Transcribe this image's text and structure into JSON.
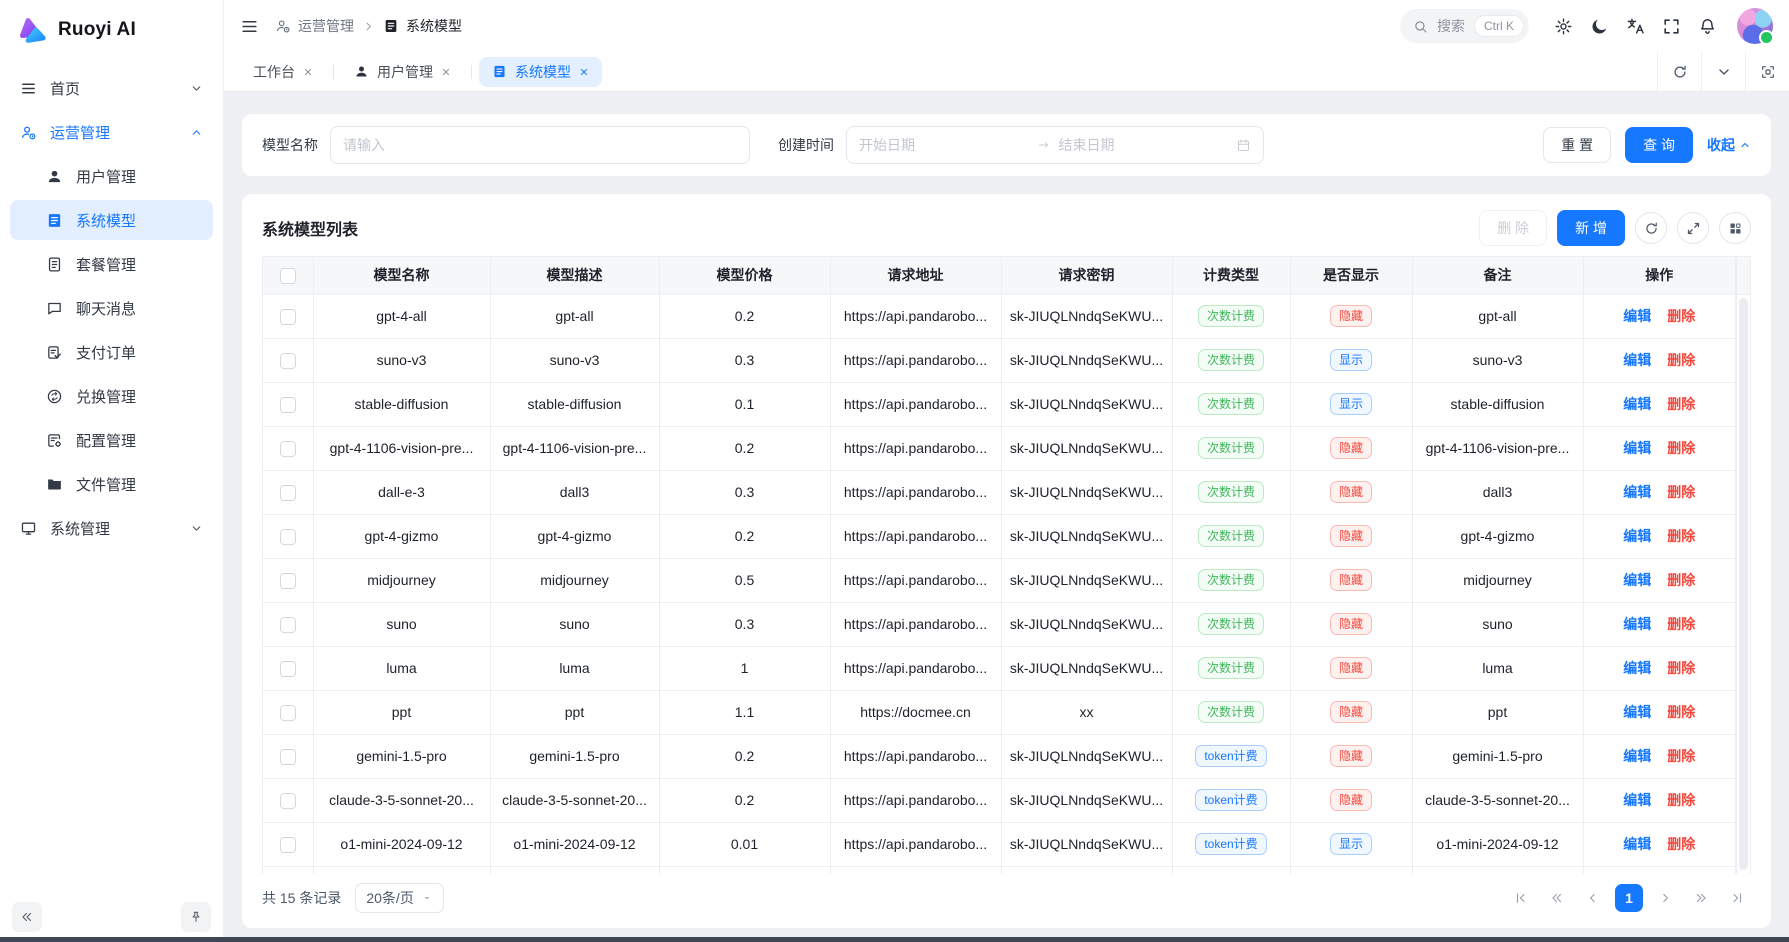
{
  "app": {
    "title": "Ruoyi AI"
  },
  "colors": {
    "primary": "#1677ff",
    "success": "#3eb75b",
    "danger": "#f5483b",
    "sidebar_selected_bg": "#e3eeff",
    "active_tab_bg": "#e4efff",
    "page_bg": "#eef0f4",
    "online_dot": "#22c55e"
  },
  "sidebar": {
    "items": [
      {
        "id": "home",
        "label": "首页",
        "icon": "menu",
        "chevron": "down"
      },
      {
        "id": "operations",
        "label": "运营管理",
        "icon": "user-gear",
        "chevron": "up",
        "active": true,
        "children": [
          {
            "id": "user-mgmt",
            "label": "用户管理",
            "icon": "user"
          },
          {
            "id": "system-model",
            "label": "系统模型",
            "icon": "doc-list",
            "selected": true
          },
          {
            "id": "package-mgmt",
            "label": "套餐管理",
            "icon": "doc-lines"
          },
          {
            "id": "chat-message",
            "label": "聊天消息",
            "icon": "chat"
          },
          {
            "id": "pay-order",
            "label": "支付订单",
            "icon": "doc-check"
          },
          {
            "id": "exchange-mgmt",
            "label": "兑换管理",
            "icon": "exchange"
          },
          {
            "id": "config-mgmt",
            "label": "配置管理",
            "icon": "doc-gear"
          },
          {
            "id": "file-mgmt",
            "label": "文件管理",
            "icon": "folder"
          }
        ]
      },
      {
        "id": "system-mgmt",
        "label": "系统管理",
        "icon": "monitor",
        "chevron": "down"
      }
    ]
  },
  "header": {
    "breadcrumb": [
      {
        "label": "运营管理",
        "icon": "user-gear"
      },
      {
        "label": "系统模型",
        "icon": "doc-list"
      }
    ],
    "search_placeholder": "搜索",
    "search_shortcut": "Ctrl K",
    "actions": [
      {
        "id": "settings",
        "icon": "gear"
      },
      {
        "id": "theme",
        "icon": "moon"
      },
      {
        "id": "language",
        "icon": "translate"
      },
      {
        "id": "fullscreen",
        "icon": "fullscreen"
      },
      {
        "id": "notifications",
        "icon": "bell"
      }
    ]
  },
  "tabs": [
    {
      "id": "workbench",
      "label": "工作台"
    },
    {
      "id": "user-mgmt",
      "label": "用户管理",
      "icon": "user"
    },
    {
      "id": "system-model",
      "label": "系统模型",
      "icon": "doc-list",
      "active": true
    }
  ],
  "tab_actions": [
    {
      "id": "refresh",
      "icon": "refresh"
    },
    {
      "id": "collapse",
      "icon": "chevron-down"
    },
    {
      "id": "focus",
      "icon": "focus"
    }
  ],
  "filter": {
    "model_name_label": "模型名称",
    "model_name_placeholder": "请输入",
    "create_time_label": "创建时间",
    "start_date_placeholder": "开始日期",
    "end_date_placeholder": "结束日期",
    "reset_label": "重 置",
    "search_label": "查 询",
    "collapse_label": "收起"
  },
  "table": {
    "title": "系统模型列表",
    "toolbar": {
      "delete_label": "删 除",
      "add_label": "新 增"
    },
    "columns": [
      "模型名称",
      "模型描述",
      "模型价格",
      "请求地址",
      "请求密钥",
      "计费类型",
      "是否显示",
      "备注",
      "操作"
    ],
    "billing_labels": {
      "count": "次数计费",
      "token": "token计费"
    },
    "visibility_labels": {
      "show": "显示",
      "hide": "隐藏"
    },
    "edit_label": "编辑",
    "delete_label": "删除",
    "rows": [
      {
        "name": "gpt-4-all",
        "desc": "gpt-all",
        "price": "0.2",
        "url": "https://api.pandarobo...",
        "key": "sk-JIUQLNndqSeKWU...",
        "billing": "count",
        "show": false,
        "remark": "gpt-all"
      },
      {
        "name": "suno-v3",
        "desc": "suno-v3",
        "price": "0.3",
        "url": "https://api.pandarobo...",
        "key": "sk-JIUQLNndqSeKWU...",
        "billing": "count",
        "show": true,
        "remark": "suno-v3"
      },
      {
        "name": "stable-diffusion",
        "desc": "stable-diffusion",
        "price": "0.1",
        "url": "https://api.pandarobo...",
        "key": "sk-JIUQLNndqSeKWU...",
        "billing": "count",
        "show": true,
        "remark": "stable-diffusion"
      },
      {
        "name": "gpt-4-1106-vision-pre...",
        "desc": "gpt-4-1106-vision-pre...",
        "price": "0.2",
        "url": "https://api.pandarobo...",
        "key": "sk-JIUQLNndqSeKWU...",
        "billing": "count",
        "show": false,
        "remark": "gpt-4-1106-vision-pre..."
      },
      {
        "name": "dall-e-3",
        "desc": "dall3",
        "price": "0.3",
        "url": "https://api.pandarobo...",
        "key": "sk-JIUQLNndqSeKWU...",
        "billing": "count",
        "show": false,
        "remark": "dall3"
      },
      {
        "name": "gpt-4-gizmo",
        "desc": "gpt-4-gizmo",
        "price": "0.2",
        "url": "https://api.pandarobo...",
        "key": "sk-JIUQLNndqSeKWU...",
        "billing": "count",
        "show": false,
        "remark": "gpt-4-gizmo"
      },
      {
        "name": "midjourney",
        "desc": "midjourney",
        "price": "0.5",
        "url": "https://api.pandarobo...",
        "key": "sk-JIUQLNndqSeKWU...",
        "billing": "count",
        "show": false,
        "remark": "midjourney"
      },
      {
        "name": "suno",
        "desc": "suno",
        "price": "0.3",
        "url": "https://api.pandarobo...",
        "key": "sk-JIUQLNndqSeKWU...",
        "billing": "count",
        "show": false,
        "remark": "suno"
      },
      {
        "name": "luma",
        "desc": "luma",
        "price": "1",
        "url": "https://api.pandarobo...",
        "key": "sk-JIUQLNndqSeKWU...",
        "billing": "count",
        "show": false,
        "remark": "luma"
      },
      {
        "name": "ppt",
        "desc": "ppt",
        "price": "1.1",
        "url": "https://docmee.cn",
        "key": "xx",
        "billing": "count",
        "show": false,
        "remark": "ppt"
      },
      {
        "name": "gemini-1.5-pro",
        "desc": "gemini-1.5-pro",
        "price": "0.2",
        "url": "https://api.pandarobo...",
        "key": "sk-JIUQLNndqSeKWU...",
        "billing": "token",
        "show": false,
        "remark": "gemini-1.5-pro"
      },
      {
        "name": "claude-3-5-sonnet-20...",
        "desc": "claude-3-5-sonnet-20...",
        "price": "0.2",
        "url": "https://api.pandarobo...",
        "key": "sk-JIUQLNndqSeKWU...",
        "billing": "token",
        "show": false,
        "remark": "claude-3-5-sonnet-20..."
      },
      {
        "name": "o1-mini-2024-09-12",
        "desc": "o1-mini-2024-09-12",
        "price": "0.01",
        "url": "https://api.pandarobo...",
        "key": "sk-JIUQLNndqSeKWU...",
        "billing": "token",
        "show": true,
        "remark": "o1-mini-2024-09-12"
      }
    ]
  },
  "pagination": {
    "total_text": "共 15 条记录",
    "page_size": "20条/页",
    "current_page": "1"
  }
}
